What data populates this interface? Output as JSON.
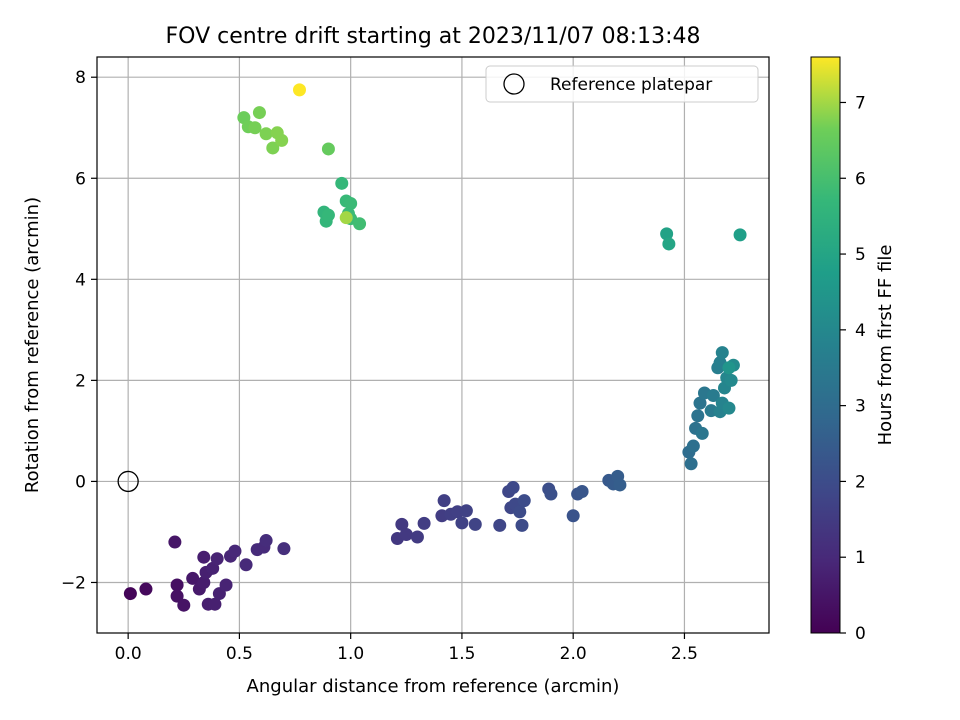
{
  "chart_data": {
    "type": "scatter",
    "title": "FOV centre drift starting at 2023/11/07 08:13:48",
    "xlabel": "Angular distance from reference (arcmin)",
    "ylabel": "Rotation from reference (arcmin)",
    "xlim": [
      -0.14,
      2.88
    ],
    "ylim": [
      -3.0,
      8.4
    ],
    "xticks": [
      0.0,
      0.5,
      1.0,
      1.5,
      2.0,
      2.5
    ],
    "xtick_labels": [
      "0.0",
      "0.5",
      "1.0",
      "1.5",
      "2.0",
      "2.5"
    ],
    "yticks": [
      -2,
      0,
      2,
      4,
      6,
      8
    ],
    "ytick_labels": [
      "−2",
      "0",
      "2",
      "4",
      "6",
      "8"
    ],
    "grid": true,
    "legend": {
      "position": "top-right",
      "entries": [
        "Reference platepar"
      ]
    },
    "colorbar": {
      "label": "Hours from first FF file",
      "range": [
        0,
        7.6
      ],
      "ticks": [
        0,
        1,
        2,
        3,
        4,
        5,
        6,
        7
      ],
      "tick_labels": [
        "0",
        "1",
        "2",
        "3",
        "4",
        "5",
        "6",
        "7"
      ],
      "colormap": "viridis"
    },
    "reference_point": {
      "x": 0.0,
      "y": 0.0
    },
    "series": [
      {
        "points": [
          [
            0.01,
            -2.22,
            0.1
          ],
          [
            0.08,
            -2.13,
            0.2
          ],
          [
            0.21,
            -1.2,
            0.5
          ],
          [
            0.22,
            -2.05,
            0.35
          ],
          [
            0.22,
            -2.27,
            0.4
          ],
          [
            0.25,
            -2.45,
            0.45
          ],
          [
            0.29,
            -1.92,
            0.55
          ],
          [
            0.32,
            -2.13,
            0.6
          ],
          [
            0.34,
            -2.0,
            0.65
          ],
          [
            0.34,
            -1.5,
            0.7
          ],
          [
            0.35,
            -1.8,
            0.75
          ],
          [
            0.36,
            -2.43,
            0.7
          ],
          [
            0.38,
            -1.72,
            0.8
          ],
          [
            0.39,
            -2.43,
            0.75
          ],
          [
            0.4,
            -1.53,
            0.85
          ],
          [
            0.41,
            -2.22,
            0.8
          ],
          [
            0.44,
            -2.05,
            0.85
          ],
          [
            0.46,
            -1.48,
            0.9
          ],
          [
            0.48,
            -1.38,
            0.95
          ],
          [
            0.53,
            -1.65,
            1.0
          ],
          [
            0.58,
            -1.35,
            1.05
          ],
          [
            0.61,
            -1.3,
            1.05
          ],
          [
            0.62,
            -1.17,
            1.1
          ],
          [
            0.7,
            -1.33,
            1.15
          ],
          [
            1.21,
            -1.13,
            1.4
          ],
          [
            1.23,
            -0.85,
            1.45
          ],
          [
            1.25,
            -1.05,
            1.45
          ],
          [
            1.3,
            -1.1,
            1.5
          ],
          [
            1.33,
            -0.83,
            1.55
          ],
          [
            1.41,
            -0.68,
            1.55
          ],
          [
            1.42,
            -0.38,
            1.6
          ],
          [
            1.45,
            -0.65,
            1.6
          ],
          [
            1.48,
            -0.6,
            1.65
          ],
          [
            1.5,
            -0.82,
            1.7
          ],
          [
            1.52,
            -0.58,
            1.7
          ],
          [
            1.56,
            -0.85,
            1.75
          ],
          [
            1.67,
            -0.87,
            1.8
          ],
          [
            1.71,
            -0.2,
            1.85
          ],
          [
            1.72,
            -0.52,
            1.85
          ],
          [
            1.73,
            -0.12,
            1.9
          ],
          [
            1.74,
            -0.45,
            1.9
          ],
          [
            1.76,
            -0.6,
            1.95
          ],
          [
            1.77,
            -0.87,
            1.95
          ],
          [
            1.78,
            -0.38,
            2.0
          ],
          [
            1.89,
            -0.15,
            2.05
          ],
          [
            1.9,
            -0.25,
            2.1
          ],
          [
            2.0,
            -0.68,
            2.2
          ],
          [
            2.02,
            -0.25,
            2.25
          ],
          [
            2.04,
            -0.2,
            2.3
          ],
          [
            2.16,
            0.02,
            2.4
          ],
          [
            2.18,
            -0.05,
            2.45
          ],
          [
            2.2,
            0.1,
            2.5
          ],
          [
            2.21,
            -0.07,
            2.55
          ],
          [
            2.52,
            0.58,
            3.05
          ],
          [
            2.53,
            0.35,
            3.1
          ],
          [
            2.54,
            0.7,
            3.15
          ],
          [
            2.55,
            1.05,
            3.2
          ],
          [
            2.56,
            1.3,
            3.25
          ],
          [
            2.57,
            1.55,
            3.3
          ],
          [
            2.58,
            0.95,
            3.35
          ],
          [
            2.59,
            1.75,
            3.4
          ],
          [
            2.62,
            1.4,
            3.5
          ],
          [
            2.63,
            1.7,
            3.55
          ],
          [
            2.65,
            2.25,
            3.65
          ],
          [
            2.66,
            2.35,
            3.7
          ],
          [
            2.66,
            1.38,
            3.75
          ],
          [
            2.67,
            2.55,
            3.8
          ],
          [
            2.67,
            1.55,
            3.85
          ],
          [
            2.68,
            1.85,
            3.9
          ],
          [
            2.69,
            2.05,
            3.95
          ],
          [
            2.7,
            1.45,
            4.0
          ],
          [
            2.71,
            2.0,
            4.05
          ],
          [
            2.72,
            2.3,
            4.1
          ],
          [
            2.7,
            2.25,
            4.45
          ],
          [
            2.42,
            4.9,
            4.9
          ],
          [
            2.43,
            4.7,
            5.0
          ],
          [
            2.75,
            4.88,
            4.8
          ],
          [
            0.88,
            5.33,
            5.6
          ],
          [
            0.89,
            5.15,
            5.65
          ],
          [
            0.9,
            5.27,
            5.7
          ],
          [
            0.96,
            5.9,
            5.7
          ],
          [
            0.98,
            5.55,
            5.75
          ],
          [
            0.99,
            5.3,
            5.8
          ],
          [
            1.0,
            5.5,
            5.8
          ],
          [
            1.0,
            5.2,
            5.85
          ],
          [
            1.04,
            5.1,
            5.9
          ],
          [
            0.9,
            6.58,
            6.5
          ],
          [
            0.52,
            7.2,
            6.6
          ],
          [
            0.54,
            7.02,
            6.65
          ],
          [
            0.57,
            7.0,
            6.7
          ],
          [
            0.59,
            7.3,
            6.7
          ],
          [
            0.62,
            6.88,
            6.75
          ],
          [
            0.65,
            6.6,
            6.75
          ],
          [
            0.67,
            6.9,
            6.8
          ],
          [
            0.69,
            6.75,
            6.8
          ],
          [
            0.98,
            5.22,
            7.0
          ],
          [
            0.77,
            7.75,
            7.6
          ]
        ]
      }
    ]
  }
}
